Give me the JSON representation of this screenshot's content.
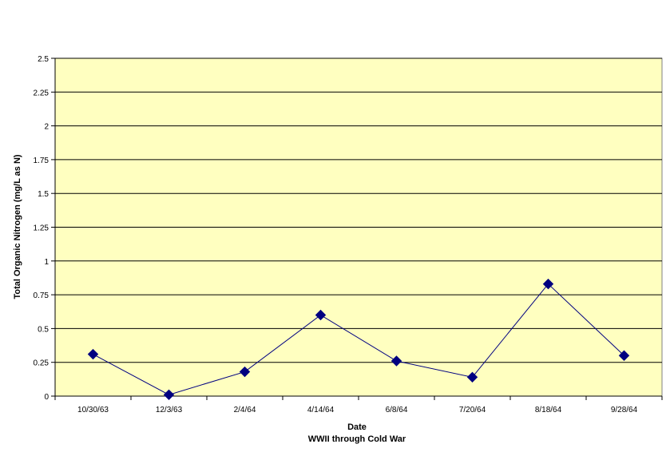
{
  "chart_data": {
    "type": "line",
    "title": "",
    "xlabel": "Date",
    "xsublabel": "WWII through Cold War",
    "ylabel": "Total Organic Nitrogen (mg/L as N)",
    "categories": [
      "10/30/63",
      "12/3/63",
      "2/4/64",
      "4/14/64",
      "6/8/64",
      "7/20/64",
      "8/18/64",
      "9/28/64"
    ],
    "series": [
      {
        "values": [
          0.31,
          0.01,
          0.18,
          0.6,
          0.26,
          0.14,
          0.83,
          0.3
        ]
      }
    ],
    "ylim": [
      0,
      2.5
    ],
    "yticks": [
      "0",
      "0.25",
      "0.5",
      "0.75",
      "1",
      "1.25",
      "1.5",
      "1.75",
      "2",
      "2.25",
      "2.5"
    ],
    "grid": true,
    "legend": "none",
    "colors": {
      "plot_background": "#FFFFC0",
      "gridline": "#000000",
      "line": "#000080",
      "marker": "#000080"
    }
  }
}
